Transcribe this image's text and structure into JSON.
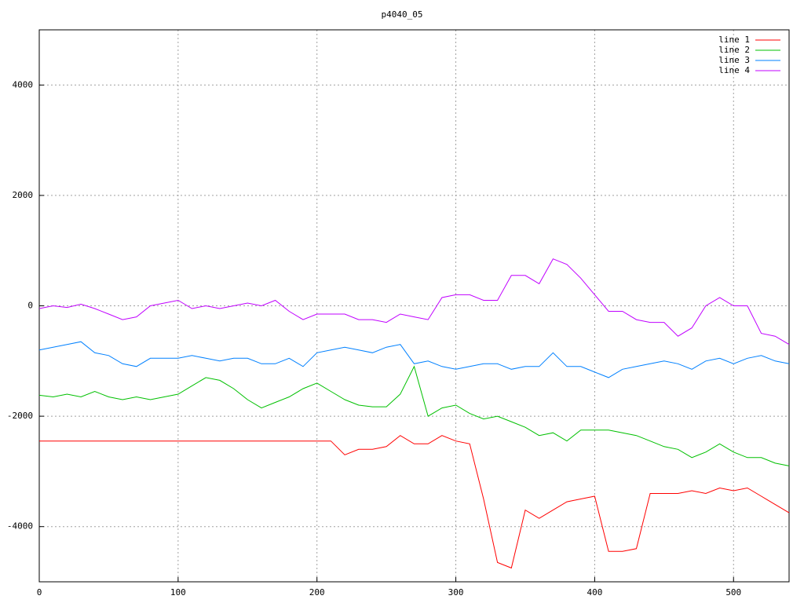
{
  "chart_data": {
    "type": "line",
    "title": "p4040_05",
    "x": [
      0,
      10,
      20,
      30,
      40,
      50,
      60,
      70,
      80,
      90,
      100,
      110,
      120,
      130,
      140,
      150,
      160,
      170,
      180,
      190,
      200,
      210,
      220,
      230,
      240,
      250,
      260,
      270,
      280,
      290,
      300,
      310,
      320,
      330,
      340,
      350,
      360,
      370,
      380,
      390,
      400,
      410,
      420,
      430,
      440,
      450,
      460,
      470,
      480,
      490,
      500,
      510,
      520,
      530,
      540
    ],
    "series": [
      {
        "name": "line 1",
        "color": "#ff0000",
        "values": [
          -2450,
          -2450,
          -2450,
          -2450,
          -2450,
          -2450,
          -2450,
          -2450,
          -2450,
          -2450,
          -2450,
          -2450,
          -2450,
          -2450,
          -2450,
          -2450,
          -2450,
          -2450,
          -2450,
          -2450,
          -2450,
          -2450,
          -2700,
          -2600,
          -2600,
          -2550,
          -2350,
          -2500,
          -2500,
          -2350,
          -2450,
          -2500,
          -3500,
          -4650,
          -4750,
          -3700,
          -3850,
          -3700,
          -3550,
          -3500,
          -3450,
          -4450,
          -4450,
          -4400,
          -3400,
          -3400,
          -3400,
          -3350,
          -3400,
          -3300,
          -3350,
          -3300,
          -3450,
          -3600,
          -3750
        ]
      },
      {
        "name": "line 2",
        "color": "#00c000",
        "values": [
          -1620,
          -1650,
          -1600,
          -1650,
          -1550,
          -1650,
          -1700,
          -1650,
          -1700,
          -1650,
          -1600,
          -1450,
          -1300,
          -1350,
          -1500,
          -1700,
          -1850,
          -1750,
          -1650,
          -1500,
          -1400,
          -1550,
          -1700,
          -1800,
          -1830,
          -1830,
          -1600,
          -1100,
          -2000,
          -1850,
          -1800,
          -1950,
          -2050,
          -2000,
          -2100,
          -2200,
          -2350,
          -2300,
          -2450,
          -2250,
          -2250,
          -2250,
          -2300,
          -2350,
          -2450,
          -2550,
          -2600,
          -2750,
          -2650,
          -2500,
          -2650,
          -2750,
          -2750,
          -2850,
          -2900
        ]
      },
      {
        "name": "line 3",
        "color": "#0080ff",
        "values": [
          -800,
          -750,
          -700,
          -650,
          -850,
          -900,
          -1050,
          -1100,
          -950,
          -950,
          -950,
          -900,
          -950,
          -1000,
          -950,
          -950,
          -1050,
          -1050,
          -950,
          -1100,
          -850,
          -800,
          -750,
          -800,
          -850,
          -750,
          -700,
          -1050,
          -1000,
          -1100,
          -1150,
          -1100,
          -1050,
          -1050,
          -1150,
          -1100,
          -1100,
          -850,
          -1100,
          -1100,
          -1200,
          -1300,
          -1150,
          -1100,
          -1050,
          -1000,
          -1050,
          -1150,
          -1000,
          -950,
          -1050,
          -950,
          -900,
          -1000,
          -1050
        ]
      },
      {
        "name": "line 4",
        "color": "#c000ff",
        "values": [
          -50,
          0,
          -30,
          30,
          -50,
          -150,
          -250,
          -200,
          0,
          50,
          100,
          -50,
          0,
          -50,
          0,
          50,
          0,
          100,
          -100,
          -250,
          -150,
          -150,
          -150,
          -250,
          -250,
          -300,
          -150,
          -200,
          -250,
          150,
          200,
          200,
          100,
          100,
          550,
          550,
          400,
          850,
          750,
          500,
          200,
          -100,
          -100,
          -250,
          -300,
          -300,
          -550,
          -400,
          0,
          150,
          0,
          0,
          -500,
          -550,
          -700
        ]
      }
    ],
    "xlim": [
      0,
      540
    ],
    "ylim": [
      -5000,
      5000
    ],
    "xticks": [
      0,
      100,
      200,
      300,
      400,
      500
    ],
    "yticks": [
      -4000,
      -2000,
      0,
      2000,
      4000
    ],
    "grid": true,
    "legend": "top-right"
  }
}
